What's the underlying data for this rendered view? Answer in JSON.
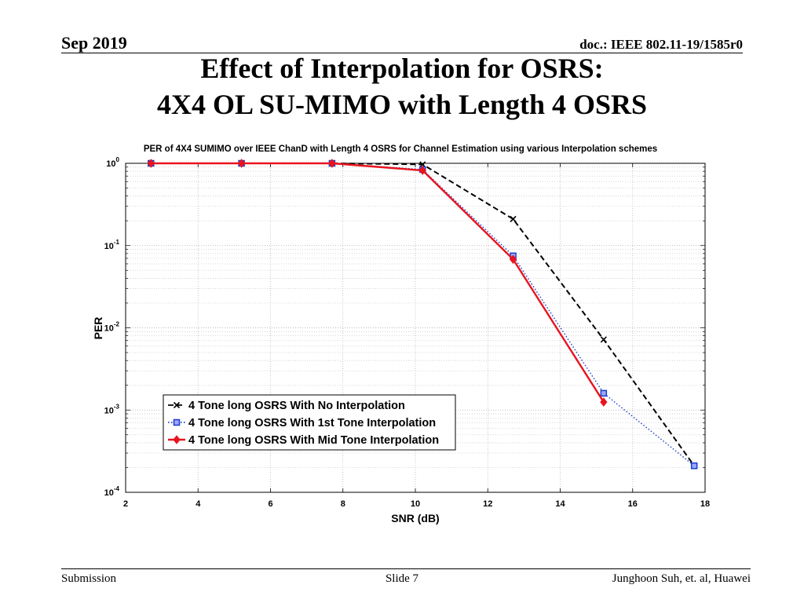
{
  "header": {
    "date": "Sep 2019",
    "doc": "doc.: IEEE 802.11-19/1585r0"
  },
  "slide_title": {
    "line1": "Effect of Interpolation for OSRS:",
    "line2": "4X4 OL SU-MIMO with Length 4 OSRS"
  },
  "footer": {
    "left": "Submission",
    "center": "Slide 7",
    "right": "Junghoon Suh, et. al, Huawei"
  },
  "chart_data": {
    "type": "line",
    "title": "PER of 4X4 SUMIMO over IEEE ChanD with Length 4 OSRS for Channel Estimation using various Interpolation schemes",
    "xlabel": "SNR (dB)",
    "ylabel": "PER",
    "xlim": [
      2,
      18
    ],
    "ylim": [
      0.0001,
      1
    ],
    "yscale": "log",
    "xticks": [
      "2",
      "4",
      "6",
      "8",
      "10",
      "12",
      "14",
      "16",
      "18"
    ],
    "yticks": [
      {
        "base": "10",
        "exp": "0",
        "value": 1
      },
      {
        "base": "10",
        "exp": "-1",
        "value": 0.1
      },
      {
        "base": "10",
        "exp": "-2",
        "value": 0.01
      },
      {
        "base": "10",
        "exp": "-3",
        "value": 0.001
      },
      {
        "base": "10",
        "exp": "-4",
        "value": 0.0001
      }
    ],
    "grid": true,
    "legend_position": "bottom-left",
    "series": [
      {
        "name": "4 Tone long OSRS With No Interpolation",
        "color": "#000000",
        "dash": "dashed",
        "marker": "x",
        "x": [
          2.7,
          5.2,
          7.7,
          10.2,
          12.7,
          15.2,
          17.7
        ],
        "y": [
          1,
          1,
          1,
          0.97,
          0.21,
          0.0072,
          0.00021
        ]
      },
      {
        "name": "4 Tone long OSRS With 1st Tone Interpolation",
        "color": "#1a3cc8",
        "dash": "dotted",
        "marker": "square",
        "x": [
          2.7,
          5.2,
          7.7,
          10.2,
          12.7,
          15.2,
          17.7
        ],
        "y": [
          1,
          1,
          1,
          0.84,
          0.075,
          0.0016,
          0.00021
        ]
      },
      {
        "name": "4 Tone long OSRS With Mid Tone Interpolation",
        "color": "#e8141e",
        "dash": "solid",
        "marker": "diamond",
        "x": [
          2.7,
          5.2,
          7.7,
          10.2,
          12.7,
          15.2
        ],
        "y": [
          1,
          1,
          1,
          0.82,
          0.068,
          0.00125
        ]
      }
    ]
  }
}
